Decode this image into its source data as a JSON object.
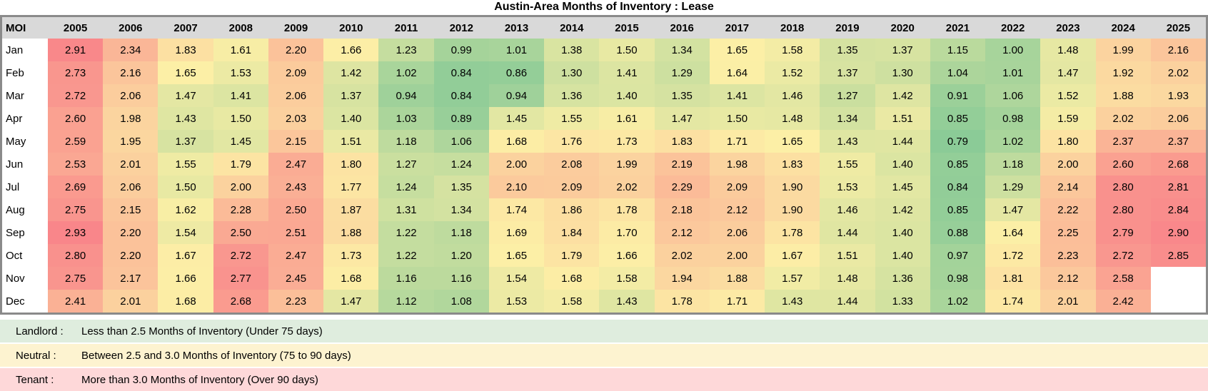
{
  "chart_data": {
    "type": "heatmap",
    "title": "Austin-Area Months of Inventory : Lease",
    "row_label_header": "MOI",
    "columns": [
      "2005",
      "2006",
      "2007",
      "2008",
      "2009",
      "2010",
      "2011",
      "2012",
      "2013",
      "2014",
      "2015",
      "2016",
      "2017",
      "2018",
      "2019",
      "2020",
      "2021",
      "2022",
      "2023",
      "2024",
      "2025"
    ],
    "rows": [
      "Jan",
      "Feb",
      "Mar",
      "Apr",
      "May",
      "Jun",
      "Jul",
      "Aug",
      "Sep",
      "Oct",
      "Nov",
      "Dec"
    ],
    "values": [
      [
        2.91,
        2.34,
        1.83,
        1.61,
        2.2,
        1.66,
        1.23,
        0.99,
        1.01,
        1.38,
        1.5,
        1.34,
        1.65,
        1.58,
        1.35,
        1.37,
        1.15,
        1.0,
        1.48,
        1.99,
        2.16
      ],
      [
        2.73,
        2.16,
        1.65,
        1.53,
        2.09,
        1.42,
        1.02,
        0.84,
        0.86,
        1.3,
        1.41,
        1.29,
        1.64,
        1.52,
        1.37,
        1.3,
        1.04,
        1.01,
        1.47,
        1.92,
        2.02
      ],
      [
        2.72,
        2.06,
        1.47,
        1.41,
        2.06,
        1.37,
        0.94,
        0.84,
        0.94,
        1.36,
        1.4,
        1.35,
        1.41,
        1.46,
        1.27,
        1.42,
        0.91,
        1.06,
        1.52,
        1.88,
        1.93
      ],
      [
        2.6,
        1.98,
        1.43,
        1.5,
        2.03,
        1.4,
        1.03,
        0.89,
        1.45,
        1.55,
        1.61,
        1.47,
        1.5,
        1.48,
        1.34,
        1.51,
        0.85,
        0.98,
        1.59,
        2.02,
        2.06
      ],
      [
        2.59,
        1.95,
        1.37,
        1.45,
        2.15,
        1.51,
        1.18,
        1.06,
        1.68,
        1.76,
        1.73,
        1.83,
        1.71,
        1.65,
        1.43,
        1.44,
        0.79,
        1.02,
        1.8,
        2.37,
        2.37
      ],
      [
        2.53,
        2.01,
        1.55,
        1.79,
        2.47,
        1.8,
        1.27,
        1.24,
        2.0,
        2.08,
        1.99,
        2.19,
        1.98,
        1.83,
        1.55,
        1.4,
        0.85,
        1.18,
        2.0,
        2.6,
        2.68
      ],
      [
        2.69,
        2.06,
        1.5,
        2.0,
        2.43,
        1.77,
        1.24,
        1.35,
        2.1,
        2.09,
        2.02,
        2.29,
        2.09,
        1.9,
        1.53,
        1.45,
        0.84,
        1.29,
        2.14,
        2.8,
        2.81
      ],
      [
        2.75,
        2.15,
        1.62,
        2.28,
        2.5,
        1.87,
        1.31,
        1.34,
        1.74,
        1.86,
        1.78,
        2.18,
        2.12,
        1.9,
        1.46,
        1.42,
        0.85,
        1.47,
        2.22,
        2.8,
        2.84
      ],
      [
        2.93,
        2.2,
        1.54,
        2.5,
        2.51,
        1.88,
        1.22,
        1.18,
        1.69,
        1.84,
        1.7,
        2.12,
        2.06,
        1.78,
        1.44,
        1.4,
        0.88,
        1.64,
        2.25,
        2.79,
        2.9
      ],
      [
        2.8,
        2.2,
        1.67,
        2.72,
        2.47,
        1.73,
        1.22,
        1.2,
        1.65,
        1.79,
        1.66,
        2.02,
        2.0,
        1.67,
        1.51,
        1.4,
        0.97,
        1.72,
        2.23,
        2.72,
        2.85
      ],
      [
        2.75,
        2.17,
        1.66,
        2.77,
        2.45,
        1.68,
        1.16,
        1.16,
        1.54,
        1.68,
        1.58,
        1.94,
        1.88,
        1.57,
        1.48,
        1.36,
        0.98,
        1.81,
        2.12,
        2.58,
        null
      ],
      [
        2.41,
        2.01,
        1.68,
        2.68,
        2.23,
        1.47,
        1.12,
        1.08,
        1.53,
        1.58,
        1.43,
        1.78,
        1.71,
        1.43,
        1.44,
        1.33,
        1.02,
        1.74,
        2.01,
        2.42,
        null
      ]
    ],
    "color_scale": {
      "min_value": 0.79,
      "mid_value": 1.65,
      "max_value": 2.93,
      "min_color": "#8BCB97",
      "mid_color": "#FCEFA6",
      "max_color": "#F9868A",
      "empty_color": "#FFFFFF"
    },
    "style_colors": {
      "header_bg": "#D9D9D9",
      "border": "#8A8A8A"
    },
    "legend": [
      {
        "id": "landlord",
        "label": "Landlord :",
        "text": "Less than 2.5 Months of Inventory (Under 75 days)",
        "color": "#DFEDDE"
      },
      {
        "id": "neutral",
        "label": "Neutral :",
        "text": "Between 2.5 and 3.0 Months of Inventory (75 to 90 days)",
        "color": "#FDF3D0"
      },
      {
        "id": "tenant",
        "label": "Tenant :",
        "text": "More than 3.0 Months of Inventory (Over 90 days)",
        "color": "#FED8D9"
      }
    ]
  }
}
